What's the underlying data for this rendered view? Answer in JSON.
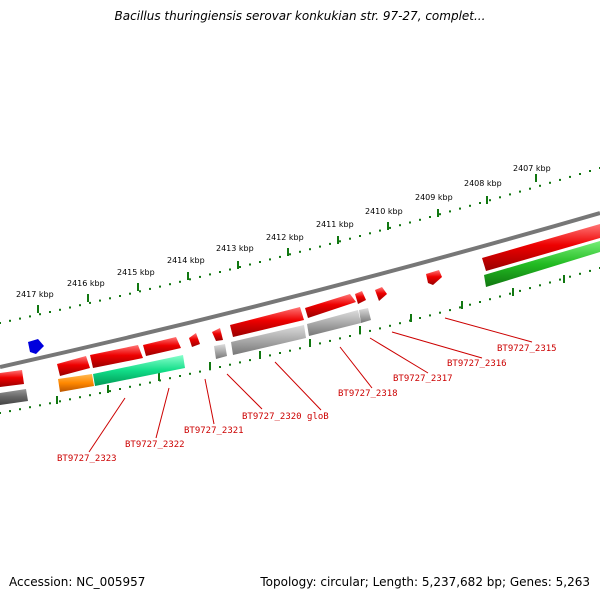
{
  "title": "Bacillus thuringiensis serovar konkukian str. 97-27, complet...",
  "accession": "Accession: NC_005957",
  "summary": "Topology: circular; Length: 5,237,682 bp; Genes: 5,263",
  "scale": {
    "unit": "kbp",
    "ticks": [
      {
        "kbp": 2407,
        "label": "2407 kbp"
      },
      {
        "kbp": 2408,
        "label": "2408 kbp"
      },
      {
        "kbp": 2409,
        "label": "2409 kbp"
      },
      {
        "kbp": 2410,
        "label": "2410 kbp"
      },
      {
        "kbp": 2411,
        "label": "2411 kbp"
      },
      {
        "kbp": 2412,
        "label": "2412 kbp"
      },
      {
        "kbp": 2413,
        "label": "2413 kbp"
      },
      {
        "kbp": 2414,
        "label": "2414 kbp"
      },
      {
        "kbp": 2415,
        "label": "2415 kbp"
      },
      {
        "kbp": 2416,
        "label": "2416 kbp"
      },
      {
        "kbp": 2417,
        "label": "2417 kbp"
      }
    ]
  },
  "colors": {
    "cds": "#ee0000",
    "gene": "#aaaaaa",
    "backbone": "#777777",
    "tick": "#117711",
    "label": "#cc0000",
    "green_feature": "#22bb22",
    "teal_feature": "#11dd88",
    "orange_feature": "#ff8800",
    "blue_feature": "#0000dd"
  },
  "gene_labels": [
    {
      "id": "BT9727_2315",
      "text": "BT9727_2315"
    },
    {
      "id": "BT9727_2316",
      "text": "BT9727_2316"
    },
    {
      "id": "BT9727_2317",
      "text": "BT9727_2317"
    },
    {
      "id": "BT9727_2318",
      "text": "BT9727_2318"
    },
    {
      "id": "BT9727_2320",
      "text": "BT9727_2320 gloB"
    },
    {
      "id": "BT9727_2321",
      "text": "BT9727_2321"
    },
    {
      "id": "BT9727_2322",
      "text": "BT9727_2322"
    },
    {
      "id": "BT9727_2323",
      "text": "BT9727_2323"
    }
  ]
}
